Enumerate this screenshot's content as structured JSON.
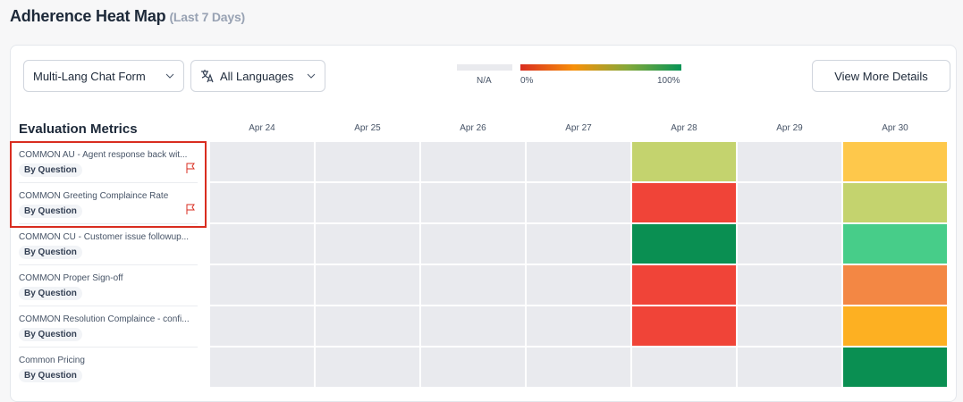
{
  "header": {
    "title": "Adherence Heat Map",
    "subtitle": "(Last 7 Days)"
  },
  "toolbar": {
    "form_select": "Multi-Lang Chat Form",
    "language_select": "All Languages",
    "button": "View More Details"
  },
  "legend": {
    "na_label": "N/A",
    "na_color": "#e9eaee",
    "min_label": "0%",
    "max_label": "100%",
    "gradient": [
      "#d92d20",
      "#f79009",
      "#84a83a",
      "#079455"
    ]
  },
  "grid": {
    "row_header": "Evaluation Metrics",
    "dates": [
      "Apr 24",
      "Apr 25",
      "Apr 26",
      "Apr 27",
      "Apr 28",
      "Apr 29",
      "Apr 30"
    ],
    "rows": [
      {
        "label": "COMMON AU - Agent response back wit...",
        "tag": "By Question",
        "flagged": true,
        "highlighted": true,
        "cells": [
          null,
          null,
          null,
          null,
          "#c4d36e",
          null,
          "#fec84b"
        ]
      },
      {
        "label": "COMMON Greeting Complaince Rate",
        "tag": "By Question",
        "flagged": true,
        "highlighted": true,
        "cells": [
          null,
          null,
          null,
          null,
          "#f04438",
          null,
          "#c4d36e"
        ]
      },
      {
        "label": "COMMON CU - Customer issue followup...",
        "tag": "By Question",
        "flagged": false,
        "highlighted": false,
        "cells": [
          null,
          null,
          null,
          null,
          "#0a8f52",
          null,
          "#47cd89"
        ]
      },
      {
        "label": "COMMON Proper Sign-off",
        "tag": "By Question",
        "flagged": false,
        "highlighted": false,
        "cells": [
          null,
          null,
          null,
          null,
          "#f04438",
          null,
          "#f38744"
        ]
      },
      {
        "label": "COMMON Resolution Complaince - confi...",
        "tag": "By Question",
        "flagged": false,
        "highlighted": false,
        "cells": [
          null,
          null,
          null,
          null,
          "#f04438",
          null,
          "#fdb022"
        ]
      },
      {
        "label": "Common Pricing",
        "tag": "By Question",
        "flagged": false,
        "highlighted": false,
        "cells": [
          null,
          null,
          null,
          null,
          null,
          null,
          "#0a8f52"
        ]
      }
    ]
  }
}
